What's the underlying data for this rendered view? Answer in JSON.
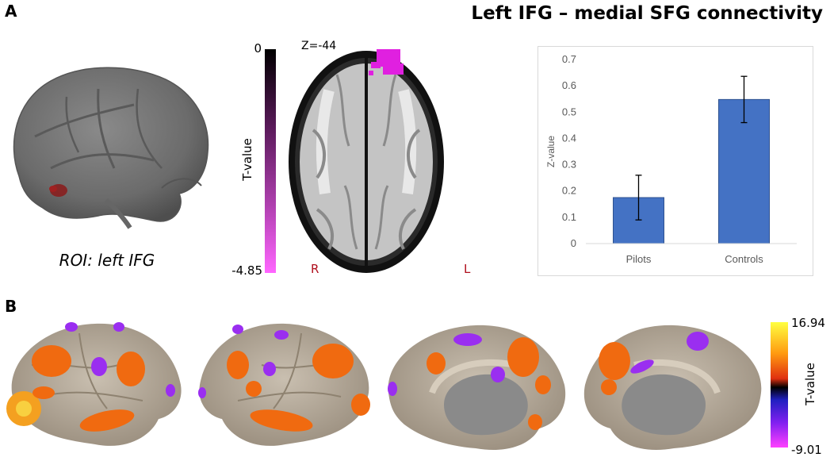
{
  "panel_a": {
    "letter": "A",
    "title": "Left IFG – medial SFG connectivity",
    "roi_caption": "ROI: left IFG",
    "colorbar": {
      "max_label": "0",
      "min_label": "-4.85",
      "label": "T-value",
      "color_top": "#000000",
      "color_bottom": "#ff66ff"
    },
    "slice": {
      "label": "Z=-44",
      "right_label": "R",
      "left_label": "L",
      "label_color": "#b0101e",
      "cluster_color": "#e020e0"
    }
  },
  "panel_b": {
    "letter": "B",
    "colorbar": {
      "max_label": "16.94",
      "min_label": "-9.01",
      "label": "T-value"
    },
    "positive_color": "#f06a10",
    "negative_color": "#9a2ef0",
    "cortex_color": "#b7aa98"
  },
  "chart_data": {
    "type": "bar",
    "categories": [
      "Pilots",
      "Controls"
    ],
    "values": [
      0.175,
      0.548
    ],
    "errors": [
      0.085,
      0.088
    ],
    "ylabel": "Z-value",
    "xlabel": "",
    "ylim": [
      0,
      0.7
    ],
    "yticks": [
      "0",
      "0.1",
      "0.2",
      "0.3",
      "0.4",
      "0.5",
      "0.6",
      "0.7"
    ],
    "bar_color": "#4472c4",
    "grid": false
  }
}
